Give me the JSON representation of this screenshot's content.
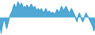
{
  "chart_data": {
    "type": "area",
    "values": [
      -1.5,
      -3.5,
      -2.0,
      -1.0,
      -0.5,
      -1.5,
      -2.5,
      -1.5,
      -0.5,
      0.5,
      1.0,
      1.5,
      2.5,
      3.0,
      2.0,
      2.5,
      3.5,
      3.0,
      2.5,
      3.2,
      2.8,
      2.0,
      2.5,
      2.0,
      2.8,
      2.5,
      2.0,
      2.5,
      3.0,
      2.5,
      2.0,
      2.5,
      2.0,
      1.5,
      2.0,
      1.8,
      1.5,
      2.0,
      1.5,
      1.0,
      1.5,
      2.0,
      1.5,
      1.0,
      1.5,
      1.2,
      0.8,
      1.2,
      1.0,
      0.8,
      1.2,
      1.8,
      1.5,
      1.0,
      1.8,
      2.5,
      2.0,
      1.5,
      2.0,
      2.5,
      2.0,
      1.5,
      1.0,
      1.5,
      2.0,
      1.5,
      1.0,
      0.5,
      -0.5,
      -1.0,
      0.5,
      1.0,
      0.5,
      -0.5,
      -1.0,
      -0.5,
      0.5,
      1.0,
      0.5,
      0.2,
      -0.5,
      -1.0,
      -1.5,
      -2.0,
      -3.0,
      -2.0
    ],
    "color": "#3399cc",
    "xlim": [
      0,
      85
    ],
    "ylim": [
      -3.85,
      3.85
    ],
    "grid": false,
    "tick_labels": false
  }
}
